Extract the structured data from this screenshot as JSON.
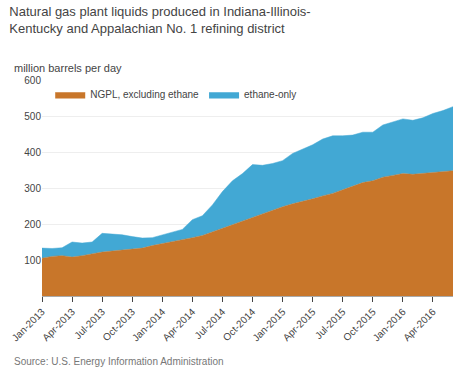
{
  "chart_data": {
    "type": "area",
    "stacked": true,
    "title": "Natural gas plant liquids produced in Indiana-Illinois-\nKentucky and Appalachian No. 1 refining district",
    "ylabel": "million barrels per day",
    "annotations": [
      "Source: U.S. Energy Information Administration"
    ],
    "categories": [
      "Jan-2013",
      null,
      null,
      "Apr-2013",
      null,
      null,
      "Jul-2013",
      null,
      null,
      "Oct-2013",
      null,
      null,
      "Jan-2014",
      null,
      null,
      "Apr-2014",
      null,
      null,
      "Jul-2014",
      null,
      null,
      "Oct-2014",
      null,
      null,
      "Jan-2015",
      null,
      null,
      "Apr-2015",
      null,
      null,
      "Jul-2015",
      null,
      null,
      "Oct-2015",
      null,
      null,
      "Jan-2016",
      null,
      null,
      "Apr-2016",
      null,
      null
    ],
    "series": [
      {
        "name": "NGPL, excluding ethane",
        "color": "#C8762A",
        "values": [
          105,
          110,
          112,
          108,
          112,
          118,
          122,
          125,
          128,
          130,
          133,
          140,
          145,
          150,
          155,
          162,
          168,
          178,
          190,
          200,
          210,
          220,
          228,
          238,
          248,
          256,
          262,
          270,
          278,
          285,
          295,
          305,
          315,
          320,
          330,
          335,
          340,
          338,
          340,
          342,
          345,
          348
        ]
      },
      {
        "name": "ethane-only",
        "color": "#42A8D4",
        "values": [
          28,
          22,
          22,
          42,
          35,
          32,
          52,
          48,
          42,
          35,
          28,
          22,
          25,
          28,
          30,
          50,
          55,
          75,
          100,
          120,
          130,
          145,
          135,
          130,
          128,
          140,
          145,
          150,
          158,
          160,
          150,
          142,
          140,
          135,
          145,
          148,
          152,
          150,
          155,
          165,
          170,
          178
        ]
      }
    ],
    "ylim": [
      0,
      600
    ],
    "yticks": [
      100,
      200,
      300,
      400,
      500,
      600
    ],
    "grid": true,
    "legend": "upper left"
  }
}
